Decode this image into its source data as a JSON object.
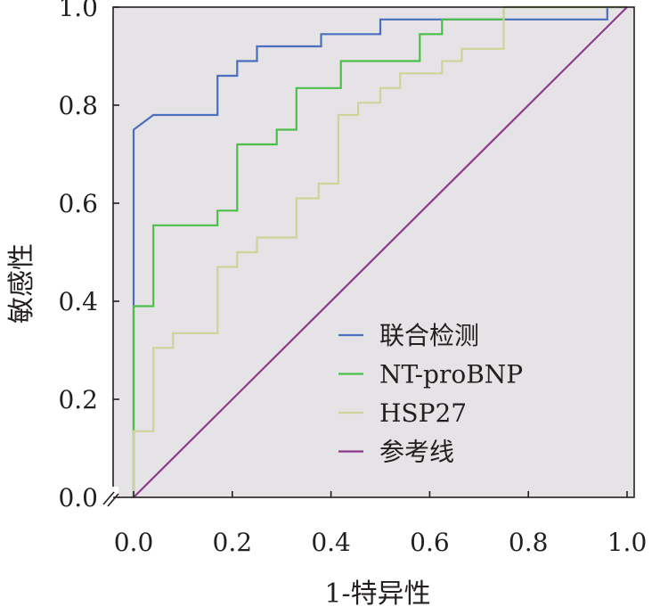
{
  "chart_data": {
    "type": "line",
    "xlabel": "1-特异性",
    "ylabel": "敏感性",
    "xlim": [
      0.0,
      1.0
    ],
    "ylim": [
      0.0,
      1.0
    ],
    "x_ticks": [
      "0.0",
      "0.2",
      "0.4",
      "0.6",
      "0.8",
      "1.0"
    ],
    "y_ticks": [
      "0.0",
      "0.2",
      "0.4",
      "0.6",
      "0.8",
      "1.0"
    ],
    "grid": false,
    "plot_background": "#e6e3e6",
    "legend_position": "lower-right",
    "series": [
      {
        "name": "联合检测",
        "color": "#4a6fbe",
        "points": [
          [
            0,
            0
          ],
          [
            0,
            0.75
          ],
          [
            0.04,
            0.78
          ],
          [
            0.17,
            0.78
          ],
          [
            0.17,
            0.86
          ],
          [
            0.21,
            0.86
          ],
          [
            0.21,
            0.89
          ],
          [
            0.25,
            0.89
          ],
          [
            0.25,
            0.92
          ],
          [
            0.38,
            0.92
          ],
          [
            0.38,
            0.945
          ],
          [
            0.5,
            0.945
          ],
          [
            0.5,
            0.975
          ],
          [
            0.96,
            0.975
          ],
          [
            0.96,
            1.0
          ],
          [
            1.0,
            1.0
          ]
        ]
      },
      {
        "name": "NT-proBNP",
        "color": "#4cbf4a",
        "points": [
          [
            0,
            0
          ],
          [
            0,
            0.39
          ],
          [
            0.04,
            0.39
          ],
          [
            0.04,
            0.555
          ],
          [
            0.17,
            0.555
          ],
          [
            0.17,
            0.585
          ],
          [
            0.21,
            0.585
          ],
          [
            0.21,
            0.72
          ],
          [
            0.29,
            0.72
          ],
          [
            0.29,
            0.75
          ],
          [
            0.33,
            0.75
          ],
          [
            0.33,
            0.835
          ],
          [
            0.42,
            0.835
          ],
          [
            0.42,
            0.89
          ],
          [
            0.58,
            0.89
          ],
          [
            0.58,
            0.945
          ],
          [
            0.625,
            0.945
          ],
          [
            0.625,
            0.975
          ],
          [
            0.75,
            0.975
          ],
          [
            0.75,
            1.0
          ],
          [
            1.0,
            1.0
          ]
        ]
      },
      {
        "name": "HSP27",
        "color": "#cdd49a",
        "points": [
          [
            0,
            0
          ],
          [
            0,
            0.135
          ],
          [
            0.04,
            0.135
          ],
          [
            0.04,
            0.305
          ],
          [
            0.08,
            0.305
          ],
          [
            0.08,
            0.335
          ],
          [
            0.17,
            0.335
          ],
          [
            0.17,
            0.47
          ],
          [
            0.21,
            0.47
          ],
          [
            0.21,
            0.5
          ],
          [
            0.25,
            0.5
          ],
          [
            0.25,
            0.53
          ],
          [
            0.33,
            0.53
          ],
          [
            0.33,
            0.61
          ],
          [
            0.375,
            0.61
          ],
          [
            0.375,
            0.64
          ],
          [
            0.415,
            0.64
          ],
          [
            0.415,
            0.78
          ],
          [
            0.455,
            0.78
          ],
          [
            0.455,
            0.805
          ],
          [
            0.5,
            0.805
          ],
          [
            0.5,
            0.835
          ],
          [
            0.54,
            0.835
          ],
          [
            0.54,
            0.865
          ],
          [
            0.625,
            0.865
          ],
          [
            0.625,
            0.89
          ],
          [
            0.665,
            0.89
          ],
          [
            0.665,
            0.915
          ],
          [
            0.75,
            0.915
          ],
          [
            0.75,
            1.0
          ],
          [
            1.0,
            1.0
          ]
        ]
      },
      {
        "name": "参考线",
        "color": "#8e3a8c",
        "points": [
          [
            0,
            0
          ],
          [
            1,
            1
          ]
        ]
      }
    ]
  }
}
